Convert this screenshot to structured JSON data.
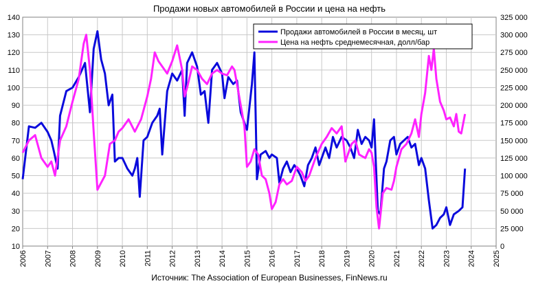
{
  "chart_data": {
    "type": "line",
    "title": "Продажи новых автомобилей в России и цена на нефть",
    "source": "Источник: The Association of European Businesses, FinNews.ru",
    "xlim": [
      2006,
      2025
    ],
    "x_ticks": [
      "2006",
      "2007",
      "2008",
      "2009",
      "2010",
      "2011",
      "2012",
      "2013",
      "2014",
      "2015",
      "2016",
      "2017",
      "2018",
      "2019",
      "2020",
      "2021",
      "2022",
      "2023",
      "2024",
      "2025"
    ],
    "y_left": {
      "range": [
        10,
        140
      ],
      "ticks": [
        "10",
        "20",
        "30",
        "40",
        "50",
        "60",
        "70",
        "80",
        "90",
        "100",
        "110",
        "120",
        "130",
        "140"
      ]
    },
    "y_right": {
      "range": [
        0,
        325000
      ],
      "ticks": [
        "0",
        "25 000",
        "50 000",
        "75 000",
        "100 000",
        "125 000",
        "150 000",
        "175 000",
        "200 000",
        "225 000",
        "250 000",
        "275 000",
        "300 000",
        "325 000"
      ]
    },
    "grid": true,
    "legend_position": "top-right",
    "series": [
      {
        "name": "Продажи автомобилей в России в месяц, шт",
        "axis": "right",
        "color": "#0a0adc",
        "points": [
          [
            2006.0,
            95000
          ],
          [
            2006.25,
            170000
          ],
          [
            2006.5,
            168000
          ],
          [
            2006.75,
            175000
          ],
          [
            2007.0,
            162000
          ],
          [
            2007.15,
            150000
          ],
          [
            2007.25,
            135000
          ],
          [
            2007.4,
            110000
          ],
          [
            2007.5,
            185000
          ],
          [
            2007.75,
            220000
          ],
          [
            2008.0,
            225000
          ],
          [
            2008.25,
            240000
          ],
          [
            2008.5,
            260000
          ],
          [
            2008.7,
            190000
          ],
          [
            2008.85,
            280000
          ],
          [
            2009.0,
            305000
          ],
          [
            2009.15,
            265000
          ],
          [
            2009.3,
            245000
          ],
          [
            2009.45,
            200000
          ],
          [
            2009.6,
            215000
          ],
          [
            2009.7,
            120000
          ],
          [
            2009.85,
            125000
          ],
          [
            2010.0,
            125000
          ],
          [
            2010.2,
            110000
          ],
          [
            2010.4,
            100000
          ],
          [
            2010.5,
            110000
          ],
          [
            2010.6,
            125000
          ],
          [
            2010.7,
            70000
          ],
          [
            2010.85,
            150000
          ],
          [
            2011.0,
            155000
          ],
          [
            2011.2,
            175000
          ],
          [
            2011.4,
            185000
          ],
          [
            2011.5,
            195000
          ],
          [
            2011.6,
            130000
          ],
          [
            2011.8,
            220000
          ],
          [
            2012.0,
            245000
          ],
          [
            2012.2,
            235000
          ],
          [
            2012.4,
            250000
          ],
          [
            2012.5,
            185000
          ],
          [
            2012.6,
            260000
          ],
          [
            2012.8,
            275000
          ],
          [
            2013.0,
            255000
          ],
          [
            2013.15,
            215000
          ],
          [
            2013.3,
            220000
          ],
          [
            2013.45,
            175000
          ],
          [
            2013.6,
            250000
          ],
          [
            2013.8,
            260000
          ],
          [
            2014.0,
            245000
          ],
          [
            2014.1,
            210000
          ],
          [
            2014.25,
            240000
          ],
          [
            2014.45,
            230000
          ],
          [
            2014.6,
            235000
          ],
          [
            2014.75,
            190000
          ],
          [
            2014.9,
            175000
          ],
          [
            2015.0,
            165000
          ],
          [
            2015.2,
            230000
          ],
          [
            2015.3,
            275000
          ],
          [
            2015.4,
            95000
          ],
          [
            2015.55,
            130000
          ],
          [
            2015.75,
            135000
          ],
          [
            2015.9,
            125000
          ],
          [
            2016.0,
            130000
          ],
          [
            2016.2,
            125000
          ],
          [
            2016.3,
            90000
          ],
          [
            2016.45,
            110000
          ],
          [
            2016.6,
            120000
          ],
          [
            2016.75,
            105000
          ],
          [
            2016.9,
            115000
          ],
          [
            2017.0,
            110000
          ],
          [
            2017.15,
            100000
          ],
          [
            2017.3,
            85000
          ],
          [
            2017.45,
            115000
          ],
          [
            2017.6,
            125000
          ],
          [
            2017.75,
            140000
          ],
          [
            2017.9,
            115000
          ],
          [
            2018.0,
            125000
          ],
          [
            2018.15,
            140000
          ],
          [
            2018.3,
            125000
          ],
          [
            2018.45,
            155000
          ],
          [
            2018.6,
            140000
          ],
          [
            2018.8,
            155000
          ],
          [
            2019.0,
            150000
          ],
          [
            2019.15,
            140000
          ],
          [
            2019.3,
            125000
          ],
          [
            2019.45,
            165000
          ],
          [
            2019.6,
            145000
          ],
          [
            2019.75,
            155000
          ],
          [
            2019.9,
            150000
          ],
          [
            2020.0,
            140000
          ],
          [
            2020.1,
            180000
          ],
          [
            2020.25,
            50000
          ],
          [
            2020.35,
            45000
          ],
          [
            2020.5,
            110000
          ],
          [
            2020.6,
            120000
          ],
          [
            2020.75,
            150000
          ],
          [
            2020.9,
            155000
          ],
          [
            2021.0,
            130000
          ],
          [
            2021.15,
            145000
          ],
          [
            2021.3,
            150000
          ],
          [
            2021.45,
            155000
          ],
          [
            2021.6,
            140000
          ],
          [
            2021.75,
            145000
          ],
          [
            2021.9,
            115000
          ],
          [
            2022.0,
            125000
          ],
          [
            2022.15,
            110000
          ],
          [
            2022.3,
            65000
          ],
          [
            2022.45,
            25000
          ],
          [
            2022.6,
            30000
          ],
          [
            2022.75,
            40000
          ],
          [
            2022.9,
            45000
          ],
          [
            2023.0,
            55000
          ],
          [
            2023.15,
            30000
          ],
          [
            2023.3,
            45000
          ],
          [
            2023.5,
            50000
          ],
          [
            2023.65,
            55000
          ],
          [
            2023.75,
            110000
          ]
        ]
      },
      {
        "name": "Цена на нефть среднемесячная, долл/бар",
        "axis": "left",
        "color": "#ff22ff",
        "points": [
          [
            2006.0,
            63
          ],
          [
            2006.25,
            70
          ],
          [
            2006.5,
            73
          ],
          [
            2006.75,
            60
          ],
          [
            2007.0,
            55
          ],
          [
            2007.15,
            58
          ],
          [
            2007.3,
            50
          ],
          [
            2007.5,
            70
          ],
          [
            2007.75,
            78
          ],
          [
            2008.0,
            92
          ],
          [
            2008.25,
            105
          ],
          [
            2008.45,
            125
          ],
          [
            2008.55,
            130
          ],
          [
            2008.7,
            110
          ],
          [
            2008.85,
            75
          ],
          [
            2009.0,
            42
          ],
          [
            2009.15,
            46
          ],
          [
            2009.3,
            50
          ],
          [
            2009.5,
            68
          ],
          [
            2009.7,
            70
          ],
          [
            2009.85,
            75
          ],
          [
            2010.0,
            77
          ],
          [
            2010.25,
            82
          ],
          [
            2010.5,
            75
          ],
          [
            2010.75,
            82
          ],
          [
            2011.0,
            95
          ],
          [
            2011.15,
            105
          ],
          [
            2011.3,
            120
          ],
          [
            2011.45,
            115
          ],
          [
            2011.6,
            112
          ],
          [
            2011.8,
            108
          ],
          [
            2012.0,
            115
          ],
          [
            2012.2,
            124
          ],
          [
            2012.4,
            110
          ],
          [
            2012.5,
            95
          ],
          [
            2012.6,
            100
          ],
          [
            2012.8,
            112
          ],
          [
            2013.0,
            110
          ],
          [
            2013.2,
            105
          ],
          [
            2013.4,
            102
          ],
          [
            2013.6,
            108
          ],
          [
            2013.8,
            110
          ],
          [
            2014.0,
            108
          ],
          [
            2014.2,
            107
          ],
          [
            2014.4,
            112
          ],
          [
            2014.5,
            110
          ],
          [
            2014.6,
            102
          ],
          [
            2014.75,
            90
          ],
          [
            2014.9,
            78
          ],
          [
            2015.0,
            55
          ],
          [
            2015.15,
            58
          ],
          [
            2015.3,
            65
          ],
          [
            2015.45,
            62
          ],
          [
            2015.6,
            50
          ],
          [
            2015.75,
            48
          ],
          [
            2015.9,
            40
          ],
          [
            2016.0,
            31
          ],
          [
            2016.15,
            35
          ],
          [
            2016.3,
            45
          ],
          [
            2016.45,
            48
          ],
          [
            2016.6,
            45
          ],
          [
            2016.8,
            47
          ],
          [
            2017.0,
            55
          ],
          [
            2017.2,
            52
          ],
          [
            2017.35,
            47
          ],
          [
            2017.5,
            50
          ],
          [
            2017.75,
            60
          ],
          [
            2018.0,
            68
          ],
          [
            2018.2,
            72
          ],
          [
            2018.4,
            77
          ],
          [
            2018.6,
            74
          ],
          [
            2018.8,
            78
          ],
          [
            2018.95,
            58
          ],
          [
            2019.0,
            60
          ],
          [
            2019.2,
            68
          ],
          [
            2019.35,
            70
          ],
          [
            2019.5,
            62
          ],
          [
            2019.75,
            60
          ],
          [
            2019.9,
            65
          ],
          [
            2020.0,
            63
          ],
          [
            2020.1,
            55
          ],
          [
            2020.2,
            32
          ],
          [
            2020.3,
            20
          ],
          [
            2020.45,
            40
          ],
          [
            2020.6,
            43
          ],
          [
            2020.8,
            42
          ],
          [
            2020.9,
            47
          ],
          [
            2021.0,
            55
          ],
          [
            2021.2,
            65
          ],
          [
            2021.4,
            68
          ],
          [
            2021.6,
            74
          ],
          [
            2021.75,
            82
          ],
          [
            2021.9,
            72
          ],
          [
            2022.0,
            85
          ],
          [
            2022.15,
            97
          ],
          [
            2022.3,
            118
          ],
          [
            2022.4,
            110
          ],
          [
            2022.5,
            122
          ],
          [
            2022.6,
            105
          ],
          [
            2022.75,
            92
          ],
          [
            2022.9,
            87
          ],
          [
            2023.0,
            82
          ],
          [
            2023.15,
            83
          ],
          [
            2023.3,
            78
          ],
          [
            2023.4,
            85
          ],
          [
            2023.5,
            75
          ],
          [
            2023.6,
            74
          ],
          [
            2023.75,
            85
          ]
        ]
      }
    ]
  }
}
